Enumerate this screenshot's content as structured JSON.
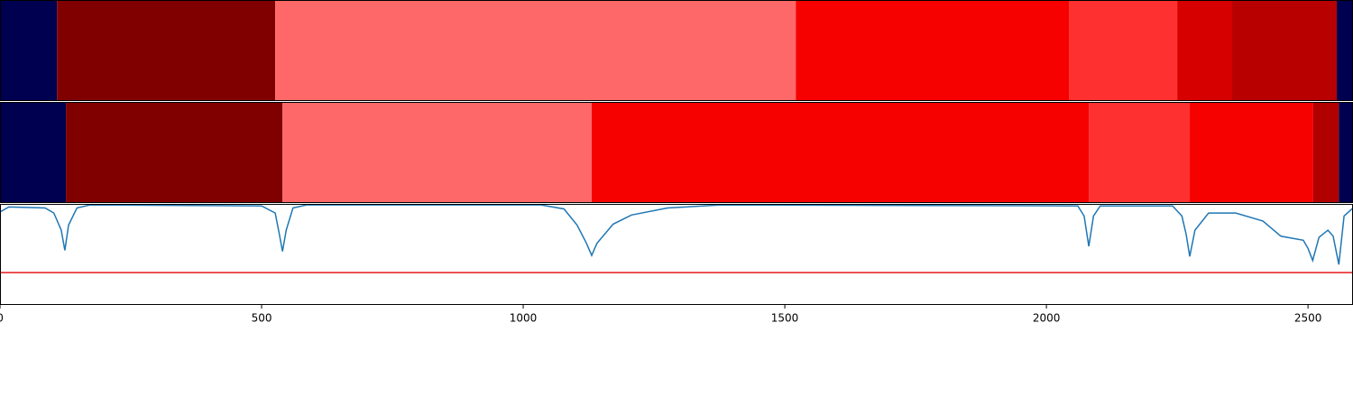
{
  "chart_data": [
    {
      "type": "segments",
      "edges": [
        0,
        109,
        526,
        1521,
        2043,
        2250,
        2355,
        2555,
        2586
      ],
      "colors": [
        "#000050",
        "#800000",
        "#ff6868",
        "#f70000",
        "#ff3030",
        "#d60000",
        "#b80000",
        "#000050"
      ]
    },
    {
      "type": "segments",
      "edges": [
        0,
        126,
        540,
        1131,
        2081,
        2274,
        2510,
        2559,
        2586
      ],
      "colors": [
        "#000050",
        "#800000",
        "#ff6868",
        "#f70000",
        "#ff3030",
        "#f70000",
        "#b00000",
        "#000050"
      ]
    },
    {
      "type": "line",
      "x": [
        0,
        17,
        86,
        103,
        117,
        124,
        131,
        147,
        172,
        500,
        526,
        534,
        540,
        547,
        560,
        586,
        1034,
        1078,
        1103,
        1121,
        1131,
        1141,
        1172,
        1207,
        1276,
        1379,
        2060,
        2072,
        2081,
        2090,
        2103,
        2241,
        2259,
        2267,
        2274,
        2284,
        2310,
        2362,
        2414,
        2448,
        2491,
        2500,
        2509,
        2521,
        2538,
        2548,
        2559,
        2569,
        2586
      ],
      "values": [
        0.92,
        0.97,
        0.96,
        0.91,
        0.74,
        0.54,
        0.79,
        0.96,
        0.99,
        0.98,
        0.91,
        0.7,
        0.53,
        0.74,
        0.96,
        0.99,
        0.99,
        0.95,
        0.79,
        0.61,
        0.49,
        0.61,
        0.8,
        0.89,
        0.96,
        0.99,
        0.98,
        0.88,
        0.58,
        0.88,
        0.98,
        0.98,
        0.88,
        0.7,
        0.48,
        0.74,
        0.91,
        0.91,
        0.83,
        0.68,
        0.64,
        0.56,
        0.44,
        0.67,
        0.74,
        0.68,
        0.4,
        0.88,
        0.96
      ],
      "color": "#1f77b4",
      "threshold": 0.32,
      "threshold_color": "#e41a1c",
      "ylim": [
        0,
        1
      ],
      "xlim": [
        0,
        2586
      ],
      "xticks": [
        0,
        500,
        1000,
        1500,
        2000,
        2500
      ]
    }
  ]
}
